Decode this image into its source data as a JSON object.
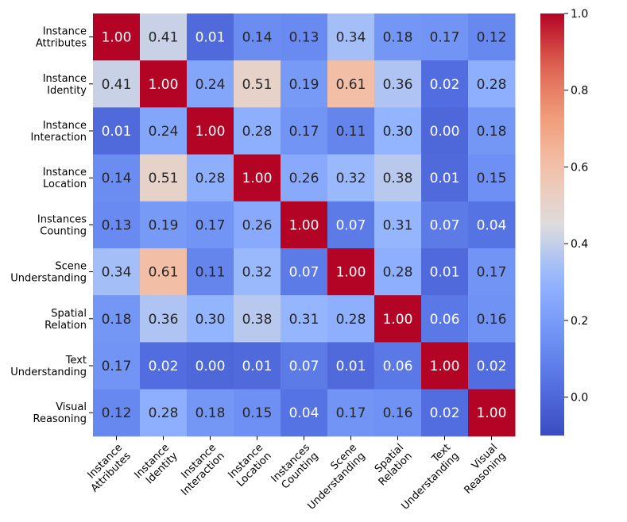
{
  "chart_data": {
    "type": "heatmap",
    "title": "",
    "xlabel": "",
    "ylabel": "",
    "rows": [
      "Instance Attributes",
      "Instance Identity",
      "Instance Interaction",
      "Instance Location",
      "Instances Counting",
      "Scene Understanding",
      "Spatial Relation",
      "Text Understanding",
      "Visual Reasoning"
    ],
    "columns": [
      "Instance Attributes",
      "Instance Identity",
      "Instance Interaction",
      "Instance Location",
      "Instances Counting",
      "Scene Understanding",
      "Spatial Relation",
      "Text Understanding",
      "Visual Reasoning"
    ],
    "values": [
      [
        1.0,
        0.41,
        0.01,
        0.14,
        0.13,
        0.34,
        0.18,
        0.17,
        0.12
      ],
      [
        0.41,
        1.0,
        0.24,
        0.51,
        0.19,
        0.61,
        0.36,
        0.02,
        0.28
      ],
      [
        0.01,
        0.24,
        1.0,
        0.28,
        0.17,
        0.11,
        0.3,
        0.0,
        0.18
      ],
      [
        0.14,
        0.51,
        0.28,
        1.0,
        0.26,
        0.32,
        0.38,
        0.01,
        0.15
      ],
      [
        0.13,
        0.19,
        0.17,
        0.26,
        1.0,
        0.07,
        0.31,
        0.07,
        0.04
      ],
      [
        0.34,
        0.61,
        0.11,
        0.32,
        0.07,
        1.0,
        0.28,
        0.01,
        0.17
      ],
      [
        0.18,
        0.36,
        0.3,
        0.38,
        0.31,
        0.28,
        1.0,
        0.06,
        0.16
      ],
      [
        0.17,
        0.02,
        0.0,
        0.01,
        0.07,
        0.01,
        0.06,
        1.0,
        0.02
      ],
      [
        0.12,
        0.28,
        0.18,
        0.15,
        0.04,
        0.17,
        0.16,
        0.02,
        1.0
      ]
    ],
    "value_format": "0.00",
    "colormap": "coolwarm",
    "colorbar": {
      "range": [
        -0.1,
        1.0
      ],
      "ticks": [
        0.0,
        0.2,
        0.4,
        0.6,
        0.8,
        1.0
      ],
      "tick_labels": [
        "0.0",
        "0.2",
        "0.4",
        "0.6",
        "0.8",
        "1.0"
      ],
      "placement": "right"
    },
    "x_tick_rotation": "45 degrees, right-aligned",
    "grid": false
  }
}
